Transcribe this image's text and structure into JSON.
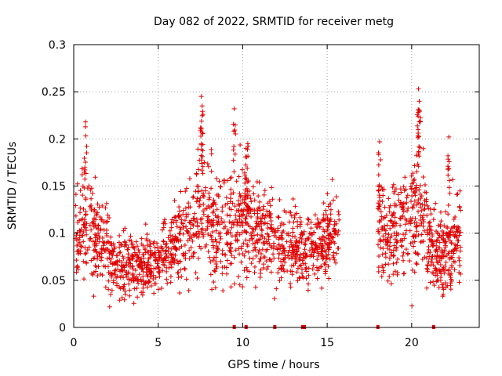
{
  "chart_data": {
    "type": "scatter",
    "title": "Day 082 of 2022, SRMTID for receiver metg",
    "xlabel": "GPS time / hours",
    "ylabel": "SRMTID / TECUs",
    "xlim": [
      0,
      24
    ],
    "ylim": [
      0,
      0.3
    ],
    "x_ticks": [
      0,
      5,
      10,
      15,
      20
    ],
    "x_tick_labels": [
      "0",
      "5",
      "10",
      "15",
      "20"
    ],
    "y_ticks": [
      0,
      0.05,
      0.1,
      0.15,
      0.2,
      0.25,
      0.3
    ],
    "y_tick_labels": [
      "0",
      "0.05",
      "0.1",
      "0.15",
      "0.2",
      "0.25",
      "0.3"
    ],
    "grid": true,
    "marker": "plus",
    "color": "#e00000",
    "envelope": [
      {
        "t": 0.0,
        "base": 0.1,
        "spread": 0.045
      },
      {
        "t": 0.5,
        "base": 0.11,
        "spread": 0.05
      },
      {
        "t": 1.0,
        "base": 0.1,
        "spread": 0.045
      },
      {
        "t": 1.5,
        "base": 0.09,
        "spread": 0.04
      },
      {
        "t": 2.0,
        "base": 0.075,
        "spread": 0.035
      },
      {
        "t": 2.5,
        "base": 0.065,
        "spread": 0.03
      },
      {
        "t": 3.0,
        "base": 0.07,
        "spread": 0.03
      },
      {
        "t": 4.0,
        "base": 0.065,
        "spread": 0.025
      },
      {
        "t": 5.0,
        "base": 0.07,
        "spread": 0.025
      },
      {
        "t": 6.0,
        "base": 0.09,
        "spread": 0.035
      },
      {
        "t": 7.0,
        "base": 0.11,
        "spread": 0.045
      },
      {
        "t": 7.5,
        "base": 0.13,
        "spread": 0.06
      },
      {
        "t": 8.0,
        "base": 0.11,
        "spread": 0.05
      },
      {
        "t": 9.0,
        "base": 0.1,
        "spread": 0.045
      },
      {
        "t": 10.0,
        "base": 0.12,
        "spread": 0.05
      },
      {
        "t": 11.0,
        "base": 0.1,
        "spread": 0.045
      },
      {
        "t": 12.0,
        "base": 0.09,
        "spread": 0.04
      },
      {
        "t": 13.0,
        "base": 0.085,
        "spread": 0.035
      },
      {
        "t": 14.0,
        "base": 0.085,
        "spread": 0.03
      },
      {
        "t": 15.0,
        "base": 0.09,
        "spread": 0.035
      },
      {
        "t": 15.5,
        "base": 0.1,
        "spread": 0.035
      },
      {
        "t": 18.0,
        "base": 0.11,
        "spread": 0.045
      },
      {
        "t": 19.0,
        "base": 0.1,
        "spread": 0.04
      },
      {
        "t": 20.0,
        "base": 0.11,
        "spread": 0.05
      },
      {
        "t": 20.5,
        "base": 0.13,
        "spread": 0.06
      },
      {
        "t": 21.0,
        "base": 0.09,
        "spread": 0.04
      },
      {
        "t": 22.0,
        "base": 0.08,
        "spread": 0.04
      },
      {
        "t": 22.8,
        "base": 0.09,
        "spread": 0.04
      }
    ],
    "segments": [
      {
        "start": 0.0,
        "end": 15.7,
        "count": 1500
      },
      {
        "start": 18.0,
        "end": 22.9,
        "count": 520
      }
    ],
    "peaks": [
      {
        "x": 0.7,
        "y": 0.218
      },
      {
        "x": 7.55,
        "y": 0.245
      },
      {
        "x": 7.6,
        "y": 0.235
      },
      {
        "x": 9.5,
        "y": 0.232
      },
      {
        "x": 10.2,
        "y": 0.19
      },
      {
        "x": 10.3,
        "y": 0.195
      },
      {
        "x": 18.1,
        "y": 0.197
      },
      {
        "x": 20.4,
        "y": 0.253
      },
      {
        "x": 20.45,
        "y": 0.24
      },
      {
        "x": 22.2,
        "y": 0.202
      }
    ],
    "baseline_markers": [
      9.5,
      10.2,
      11.9,
      13.55,
      13.65,
      18.0,
      21.3
    ]
  }
}
